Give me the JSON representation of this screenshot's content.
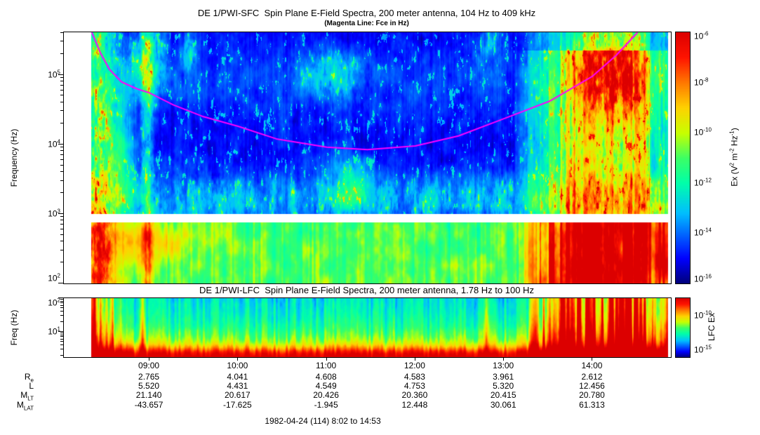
{
  "axes": {
    "exp_base": "10"
  },
  "sfc": {
    "title": "DE 1/PWI-SFC  Spin Plane E-Field Spectra, 200 meter antenna, 104 Hz to 409 kHz",
    "subtitle": "(Magenta Line: Fce in Hz)",
    "ylabel": "Frequency (Hz)",
    "ytick_exponents": [
      5,
      4,
      3,
      2
    ],
    "colorbar": {
      "tick_exponents": [
        -6,
        -8,
        -10,
        -12,
        -14,
        -16
      ],
      "label_segments": [
        {
          "t": "Ex (V"
        },
        {
          "s": "2"
        },
        {
          "t": " m"
        },
        {
          "s": "-2"
        },
        {
          "t": " Hz"
        },
        {
          "s": "-1"
        },
        {
          "t": ")"
        }
      ]
    }
  },
  "lfc": {
    "title": "DE 1/PWI-LFC  Spin Plane E-Field Spectra, 200 meter antenna, 1.78 Hz to 100 Hz",
    "ylabel": "Freq (Hz)",
    "ytick_exponents": [
      2,
      1
    ],
    "colorbar": {
      "tick_exponents": [
        -10,
        -15
      ],
      "exp_range": [
        -7.4,
        -16
      ],
      "label_segments": [
        {
          "t": "LFC Ex"
        }
      ]
    }
  },
  "time_axis": {
    "start": "8:02",
    "end": "14:53",
    "ticks": [
      "09:00",
      "10:00",
      "11:00",
      "12:00",
      "13:00",
      "14:00"
    ]
  },
  "ephemeris": {
    "rows": [
      {
        "main": "R",
        "sub": "e",
        "values": [
          "2.765",
          "4.041",
          "4.608",
          "4.583",
          "3.961",
          "2.612"
        ]
      },
      {
        "main": "L",
        "sub": "",
        "values": [
          "5.520",
          "4.431",
          "4.549",
          "4.753",
          "5.320",
          "12.456"
        ]
      },
      {
        "main": "M",
        "sub": "LT",
        "values": [
          "21.140",
          "20.617",
          "20.426",
          "20.360",
          "20.415",
          "20.780"
        ]
      },
      {
        "main": "M",
        "sub": "LAT",
        "values": [
          "-43.657",
          "-17.625",
          "-1.945",
          "12.448",
          "30.061",
          "61.313"
        ]
      }
    ]
  },
  "footer": "1982-04-24 (114) 8:02 to 14:53",
  "chart_data": [
    {
      "type": "heatmap",
      "instrument": "DE 1/PWI-SFC",
      "title": "DE 1/PWI-SFC  Spin Plane E-Field Spectra, 200 meter antenna, 104 Hz to 409 kHz",
      "ylabel": "Frequency (Hz)",
      "y_scale": "log",
      "y_range_hz": [
        100,
        409000
      ],
      "x_range_ut": [
        "8:02",
        "14:53"
      ],
      "x_ticks_ut": [
        "09:00",
        "10:00",
        "11:00",
        "12:00",
        "13:00",
        "14:00"
      ],
      "colorbar": {
        "label": "Ex (V^2 m^-2 Hz^-1)",
        "scale": "log",
        "range": [
          1e-16,
          1e-06
        ],
        "colormap": "rainbow"
      },
      "data_gap_band_hz": [
        760,
        1010
      ],
      "data_window_frac": [
        0.044,
        0.995
      ],
      "fce_line": {
        "color": "#ff00ff",
        "label": "Fce in Hz",
        "t_frac": [
          0.046,
          0.06,
          0.075,
          0.095,
          0.12,
          0.141,
          0.18,
          0.23,
          0.287,
          0.35,
          0.433,
          0.5,
          0.579,
          0.65,
          0.725,
          0.8,
          0.871,
          0.91,
          0.945
        ],
        "hz": [
          407000,
          209000,
          120000,
          79000,
          63000,
          55000,
          37000,
          25000,
          18200,
          12000,
          9100,
          8400,
          9500,
          13200,
          23400,
          41700,
          95500,
          191000,
          407000
        ]
      },
      "features": [
        "broadband auroral burst at orbit start (~08:20) reaching 400 kHz",
        "intense 100 Hz - 1 kHz band throughout pass, hottest 08:40-09:40",
        "white instrument gap band just below 1 kHz",
        "Fce (electron cyclotron) line dips to ~8.5 kHz near 11:30",
        "scattered hiss/chorus patches 1-3 kHz and near 100 kHz mid-pass",
        "intense broadband emission 13:40-14:50 reaching above 100 kHz"
      ]
    },
    {
      "type": "heatmap",
      "instrument": "DE 1/PWI-LFC",
      "title": "DE 1/PWI-LFC  Spin Plane E-Field Spectra, 200 meter antenna, 1.78 Hz to 100 Hz",
      "ylabel": "Freq (Hz)",
      "y_scale": "log",
      "y_range_hz": [
        1.78,
        100
      ],
      "x_range_ut": [
        "8:02",
        "14:53"
      ],
      "colorbar": {
        "label": "LFC Ex",
        "scale": "log",
        "colormap": "rainbow"
      },
      "data_window_frac": [
        0.044,
        0.995
      ],
      "features": [
        "saturated red band below ~4 Hz for entire pass",
        "intense broadband columns 08:20-08:50 and 13:45-14:50",
        "green/cyan striped background 5-100 Hz"
      ]
    }
  ]
}
